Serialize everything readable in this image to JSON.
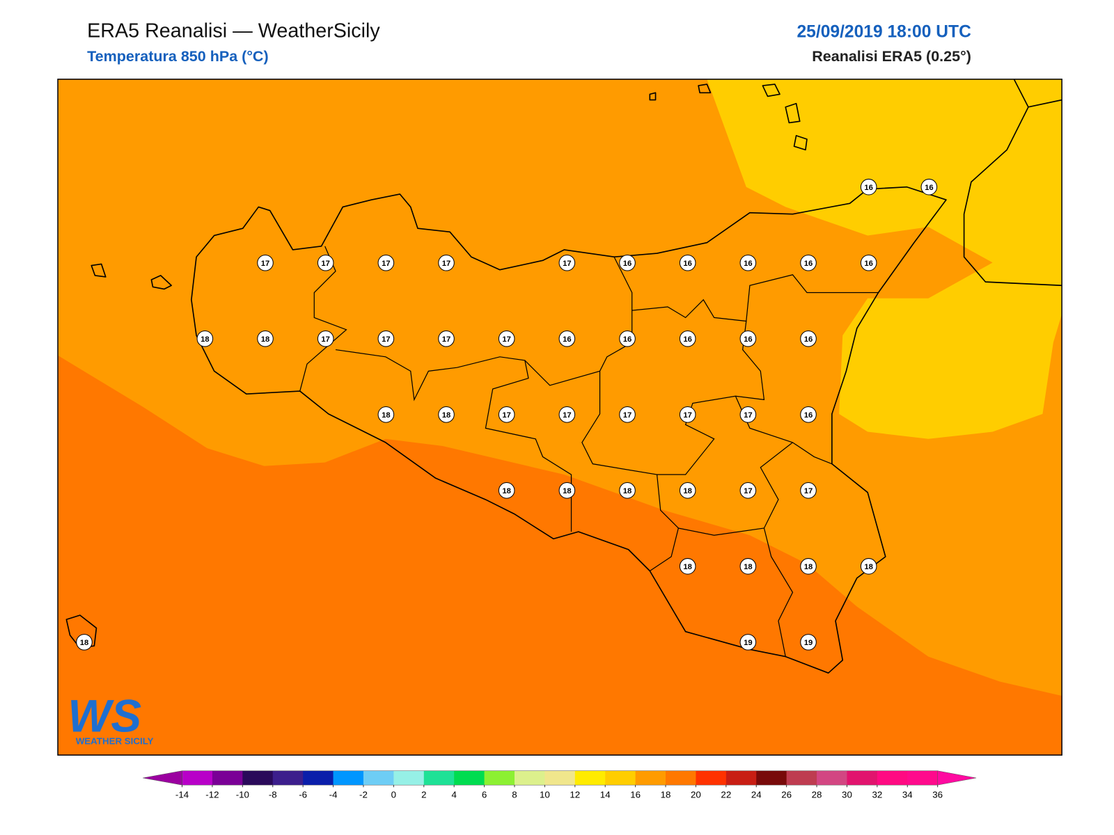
{
  "header": {
    "title": "ERA5 Reanalisi — WeatherSicily",
    "subtitle": "Temperatura 850 hPa (°C)",
    "datetime": "25/09/2019 18:00 UTC",
    "source": "Reanalisi ERA5 (0.25°)"
  },
  "map": {
    "stations": [
      [
        null,
        null,
        null,
        null,
        null,
        null,
        null,
        null,
        null,
        null,
        null,
        null,
        null,
        16,
        16
      ],
      [
        null,
        null,
        null,
        17,
        17,
        17,
        17,
        null,
        17,
        16,
        16,
        16,
        16,
        16,
        null
      ],
      [
        null,
        null,
        18,
        18,
        17,
        17,
        17,
        17,
        16,
        16,
        16,
        16,
        16,
        null,
        null
      ],
      [
        null,
        null,
        null,
        null,
        null,
        18,
        18,
        17,
        17,
        17,
        17,
        17,
        16,
        null,
        null
      ],
      [
        null,
        null,
        null,
        null,
        null,
        null,
        null,
        18,
        18,
        18,
        18,
        17,
        17,
        null,
        null
      ],
      [
        null,
        null,
        null,
        null,
        null,
        null,
        null,
        null,
        null,
        null,
        18,
        18,
        18,
        18,
        null
      ],
      [
        18,
        null,
        null,
        null,
        null,
        null,
        null,
        null,
        null,
        null,
        null,
        19,
        19,
        null,
        null
      ]
    ]
  },
  "colorbar": {
    "levels": [
      -14,
      -12,
      -10,
      -8,
      -6,
      -4,
      -2,
      0,
      2,
      4,
      6,
      8,
      10,
      12,
      14,
      16,
      18,
      20,
      22,
      24,
      26,
      28,
      30,
      32,
      34,
      36
    ],
    "colors": [
      "#b800c8",
      "#7a0096",
      "#2a0a5a",
      "#3c1e8c",
      "#0a1eaa",
      "#0096ff",
      "#6ecdf5",
      "#96f0e6",
      "#1ee196",
      "#00dc50",
      "#8cf032",
      "#dcf08c",
      "#f0e68c",
      "#ffeb00",
      "#ffcd00",
      "#ff9b00",
      "#ff7800",
      "#ff3200",
      "#c81e14",
      "#780a0a",
      "#be3c50",
      "#d24682",
      "#e1146e",
      "#ff0a82",
      "#ff0a8c"
    ],
    "under_color": "#9b00a0",
    "over_color": "#ff0aa0"
  },
  "logo": {
    "mark": "WS",
    "text": "WEATHER SICILY"
  }
}
